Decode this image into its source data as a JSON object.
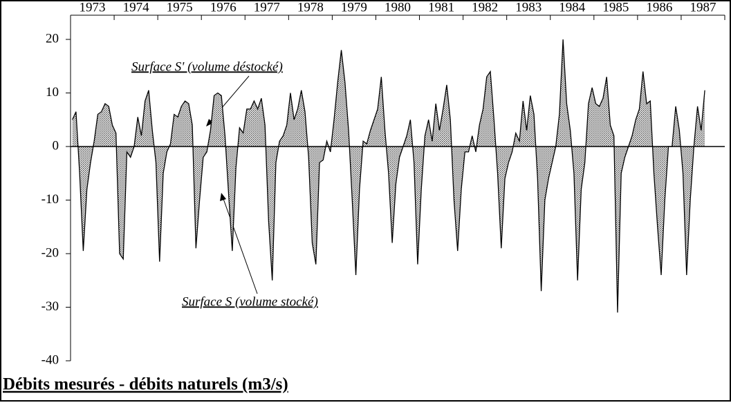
{
  "chart_data": {
    "type": "area",
    "title": "Débits mesurés - débits naturels (m3/s)",
    "annotations": [
      "Surface S' (volume déstocké)",
      "Surface S (volume stocké)"
    ],
    "categories": [
      null,
      null,
      null,
      null,
      null,
      null,
      "1973",
      null,
      null,
      null,
      null,
      null,
      null,
      null,
      null,
      null,
      null,
      null,
      "1974",
      null,
      null,
      null,
      null,
      null,
      null,
      null,
      null,
      null,
      null,
      null,
      "1975",
      null,
      null,
      null,
      null,
      null,
      null,
      null,
      null,
      null,
      null,
      null,
      "1976",
      null,
      null,
      null,
      null,
      null,
      null,
      null,
      null,
      null,
      null,
      null,
      "1977",
      null,
      null,
      null,
      null,
      null,
      null,
      null,
      null,
      null,
      null,
      null,
      "1978",
      null,
      null,
      null,
      null,
      null,
      null,
      null,
      null,
      null,
      null,
      null,
      "1979",
      null,
      null,
      null,
      null,
      null,
      null,
      null,
      null,
      null,
      null,
      null,
      "1980",
      null,
      null,
      null,
      null,
      null,
      null,
      null,
      null,
      null,
      null,
      null,
      "1981",
      null,
      null,
      null,
      null,
      null,
      null,
      null,
      null,
      null,
      null,
      null,
      "1982",
      null,
      null,
      null,
      null,
      null,
      null,
      null,
      null,
      null,
      null,
      null,
      "1983",
      null,
      null,
      null,
      null,
      null,
      null,
      null,
      null,
      null,
      null,
      null,
      "1984",
      null,
      null,
      null,
      null,
      null,
      null,
      null,
      null,
      null,
      null,
      null,
      "1985",
      null,
      null,
      null,
      null,
      null,
      null,
      null,
      null,
      null,
      null,
      null,
      "1986",
      null,
      null,
      null,
      null,
      null,
      null,
      null,
      null,
      null,
      null,
      null,
      "1987",
      null,
      null,
      null,
      null,
      null
    ],
    "values": [
      5,
      6.5,
      -5,
      -19.5,
      -8,
      -3,
      1,
      6,
      6.5,
      8,
      7.5,
      4,
      2.5,
      -20,
      -21,
      -1,
      -2,
      0,
      5.5,
      2,
      8.5,
      10.5,
      3,
      -3,
      -21.5,
      -5,
      -1,
      0.5,
      6,
      5.5,
      7.5,
      8.5,
      8,
      4,
      -19,
      -10,
      -2,
      -1,
      3,
      9.5,
      10,
      9.5,
      2,
      -9,
      -19.5,
      -4,
      3.5,
      2.5,
      7,
      7,
      8.5,
      7,
      9,
      4,
      -14,
      -25,
      -3,
      1,
      2,
      4,
      10,
      5,
      7,
      10.5,
      6.5,
      -2,
      -18,
      -22,
      -3,
      -2.5,
      1,
      -1,
      5,
      12,
      18,
      12,
      3,
      -10,
      -24,
      -8,
      1,
      0.5,
      3,
      5,
      7,
      13,
      3,
      -5,
      -18,
      -7,
      -2,
      0,
      2,
      5,
      -3,
      -22,
      -8,
      2,
      5,
      1,
      8,
      3,
      7,
      11.5,
      5,
      -10,
      -19.5,
      -8,
      -1,
      -1,
      2,
      -1,
      4,
      7,
      13,
      14,
      5,
      -5,
      -19,
      -6,
      -3,
      -1,
      2.5,
      1,
      8.5,
      3,
      9.5,
      6,
      -6,
      -27,
      -10,
      -6,
      -3,
      0,
      6,
      20,
      8,
      3,
      -5,
      -25,
      -8,
      -3,
      8,
      11,
      8,
      7.5,
      9,
      13,
      4,
      2,
      -31,
      -5,
      -2,
      0,
      2,
      5,
      7,
      14,
      8,
      8.5,
      -5,
      -15,
      -24,
      -10,
      0,
      0,
      7.5,
      3,
      -5,
      -24,
      -10,
      0,
      7.5,
      3,
      10.5,
      null,
      null,
      null,
      null,
      null
    ],
    "color": "#999999",
    "ylim": [
      -40,
      20
    ],
    "yticks": [
      20,
      10,
      0,
      -10,
      -20,
      -30,
      -40
    ]
  }
}
